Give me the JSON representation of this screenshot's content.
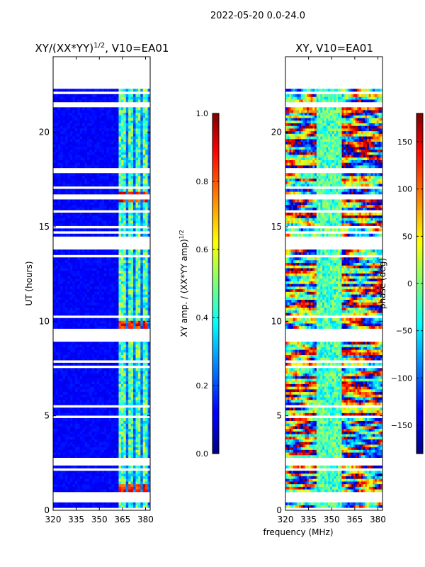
{
  "figure": {
    "suptitle": "2022-05-20 0.0-24.0",
    "shared_xlabel": "frequency (MHz)"
  },
  "chart_data": [
    {
      "type": "heatmap",
      "title_main": "XY/(XX*YY)",
      "title_sup": "1/2",
      "title_rest": ", V10=EA01",
      "xlabel": "",
      "ylabel": "UT (hours)",
      "xlim": [
        320,
        383
      ],
      "ylim": [
        0,
        24
      ],
      "xticks": [
        320,
        335,
        350,
        365,
        380
      ],
      "yticks": [
        0,
        5,
        10,
        15,
        20
      ],
      "data_top_hour": 22.3,
      "bright_channels_mhz": [
        365,
        370,
        375,
        380
      ],
      "strong_bursts_ut": [
        0.6,
        1.1,
        9.8,
        16.6
      ],
      "colorbar": {
        "label_main": "XY amp. / (XX*YY amp)",
        "label_sup": "1/2",
        "range": [
          0.0,
          1.0
        ],
        "ticks": [
          "0.0",
          "0.2",
          "0.4",
          "0.6",
          "0.8",
          "1.0"
        ]
      }
    },
    {
      "type": "heatmap",
      "title": "XY, V10=EA01",
      "xlabel": "",
      "ylabel": "",
      "xlim": [
        320,
        383
      ],
      "ylim": [
        0,
        24
      ],
      "xticks": [
        320,
        335,
        350,
        365,
        380
      ],
      "yticks": [
        0,
        5,
        10,
        15,
        20
      ],
      "data_top_hour": 22.3,
      "colorbar": {
        "label": "phase (deg)",
        "range": [
          -180,
          180
        ],
        "ticks": [
          "−150",
          "−100",
          "−50",
          "0",
          "50",
          "100",
          "150"
        ]
      }
    }
  ]
}
